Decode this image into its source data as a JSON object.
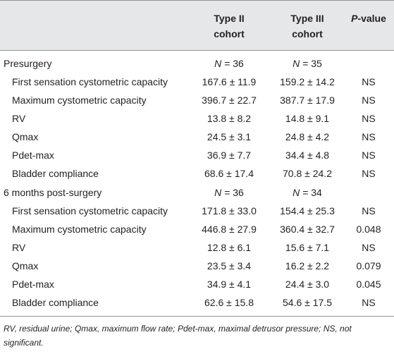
{
  "header": {
    "type2": "Type II cohort",
    "type3": "Type III cohort",
    "p_italic": "P",
    "p_rest": "-value"
  },
  "sections": [
    {
      "title": "Presurgery",
      "n_label": "N",
      "n_type2": "= 36",
      "n_type3": "= 35",
      "rows": [
        {
          "label": "First sensation cystometric capacity",
          "type2": "167.6 ± 11.9",
          "type3": "159.2 ± 14.2",
          "p": "NS"
        },
        {
          "label": "Maximum cystometric capacity",
          "type2": "396.7 ± 22.7",
          "type3": "387.7 ± 17.9",
          "p": "NS"
        },
        {
          "label": "RV",
          "type2": "13.8 ± 8.2",
          "type3": "14.8 ± 9.1",
          "p": "NS"
        },
        {
          "label": "Qmax",
          "type2": "24.5 ± 3.1",
          "type3": "24.8 ± 4.2",
          "p": "NS"
        },
        {
          "label": "Pdet-max",
          "type2": "36.9 ± 7.7",
          "type3": "34.4 ± 4.8",
          "p": "NS"
        },
        {
          "label": "Bladder compliance",
          "type2": "68.6 ± 17.4",
          "type3": "70.8 ± 24.2",
          "p": "NS"
        }
      ]
    },
    {
      "title": "6 months post-surgery",
      "n_label": "N",
      "n_type2": "= 36",
      "n_type3": "= 34",
      "rows": [
        {
          "label": "First sensation cystometric capacity",
          "type2": "171.8 ± 33.0",
          "type3": "154.4 ± 25.3",
          "p": "NS"
        },
        {
          "label": "Maximum cystometric capacity",
          "type2": "446.8 ± 27.9",
          "type3": "360.4 ± 32.7",
          "p": "0.048"
        },
        {
          "label": "RV",
          "type2": "12.8 ± 6.1",
          "type3": "15.6 ± 7.1",
          "p": "NS"
        },
        {
          "label": "Qmax",
          "type2": "23.5 ± 3.4",
          "type3": "16.2 ± 2.2",
          "p": "0.079"
        },
        {
          "label": "Pdet-max",
          "type2": "34.9 ± 4.1",
          "type3": "24.4 ± 3.0",
          "p": "0.045"
        },
        {
          "label": "Bladder compliance",
          "type2": "62.6 ± 15.8",
          "type3": "54.6 ± 17.5",
          "p": "NS"
        }
      ]
    }
  ],
  "footnote": "RV, residual urine; Qmax, maximum flow rate; Pdet-max, maximal detrusor pressure; NS, not significant."
}
